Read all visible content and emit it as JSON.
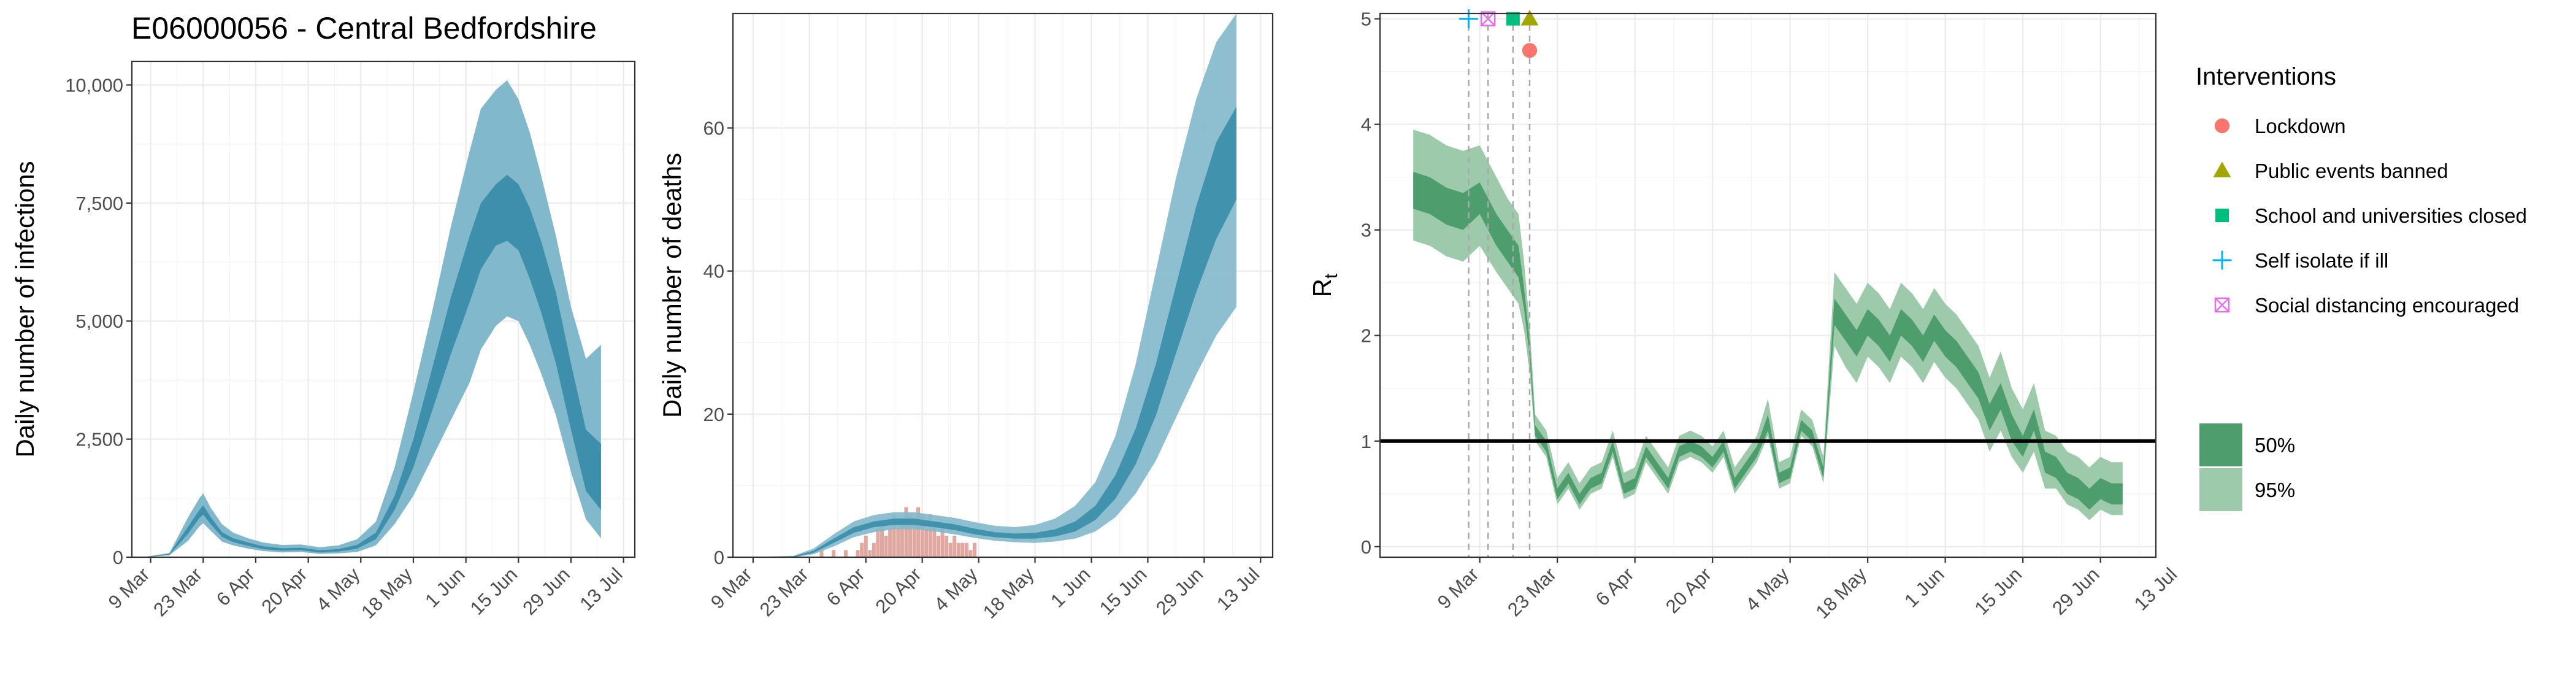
{
  "title": "E06000056 - Central Bedfordshire",
  "colors": {
    "blue_light": "#82b8cb",
    "blue_dark": "#3d8fab",
    "green_light": "#9ccaaa",
    "green_dark": "#4e9d6d",
    "death_bar": "#e0a8a0",
    "lockdown": "#f8766d",
    "public_events": "#a3a500",
    "school": "#00bf7d",
    "self_isolate": "#00b0f6",
    "social_distancing": "#e76bf3"
  },
  "chart_data": [
    {
      "name": "infections",
      "type": "area",
      "xlabel": "",
      "ylabel": "Daily number of infections",
      "ylim": [
        0,
        10500
      ],
      "yticks": [
        0,
        2500,
        5000,
        7500,
        10000
      ],
      "ytick_labels": [
        "0",
        "2,500",
        "5,000",
        "7,500",
        "10,000"
      ],
      "xlim": [
        -5,
        129
      ],
      "xticks": [
        0,
        14,
        28,
        42,
        56,
        70,
        84,
        98,
        112,
        126
      ],
      "xtick_labels": [
        "9 Mar",
        "23 Mar",
        "6 Apr",
        "20 Apr",
        "4 May",
        "18 May",
        "1 Jun",
        "15 Jun",
        "29 Jun",
        "13 Jul"
      ],
      "x": [
        -2,
        5,
        10,
        13,
        14,
        16,
        19,
        22,
        26,
        30,
        35,
        40,
        45,
        50,
        55,
        60,
        65,
        70,
        75,
        80,
        85,
        88,
        92,
        95,
        98,
        101,
        104,
        108,
        112,
        116,
        120
      ],
      "series": [
        {
          "name": "95% lower",
          "values": [
            0,
            40,
            350,
            650,
            720,
            560,
            330,
            250,
            180,
            130,
            100,
            110,
            70,
            80,
            110,
            250,
            700,
            1300,
            2100,
            2900,
            3700,
            4400,
            4900,
            5100,
            5000,
            4500,
            3900,
            3000,
            1800,
            800,
            400
          ]
        },
        {
          "name": "50% lower",
          "values": [
            0,
            50,
            500,
            830,
            900,
            700,
            430,
            320,
            240,
            170,
            140,
            150,
            100,
            120,
            180,
            380,
            1000,
            1900,
            3100,
            4300,
            5400,
            6100,
            6600,
            6700,
            6500,
            5900,
            5200,
            4100,
            2700,
            1400,
            1000
          ]
        },
        {
          "name": "50% upper",
          "values": [
            0,
            70,
            650,
            1000,
            1100,
            850,
            530,
            400,
            310,
            230,
            190,
            200,
            150,
            170,
            260,
            520,
            1300,
            2500,
            4000,
            5500,
            6800,
            7500,
            7900,
            8100,
            7900,
            7400,
            6700,
            5600,
            4100,
            2700,
            2400
          ]
        },
        {
          "name": "95% upper",
          "values": [
            0,
            90,
            850,
            1250,
            1350,
            1050,
            700,
            520,
            400,
            310,
            260,
            270,
            210,
            250,
            380,
            750,
            1900,
            3500,
            5200,
            7000,
            8600,
            9500,
            9900,
            10100,
            9700,
            9000,
            8100,
            6800,
            5300,
            4200,
            4500
          ]
        }
      ]
    },
    {
      "name": "deaths",
      "type": "area",
      "xlabel": "",
      "ylabel": "Daily number of deaths",
      "ylim": [
        0,
        76
      ],
      "yticks": [
        0,
        20,
        40,
        60
      ],
      "ytick_labels": [
        "0",
        "20",
        "40",
        "60"
      ],
      "xlim": [
        -5,
        129
      ],
      "xticks": [
        0,
        14,
        28,
        42,
        56,
        70,
        84,
        98,
        112,
        126
      ],
      "xtick_labels": [
        "9 Mar",
        "23 Mar",
        "6 Apr",
        "20 Apr",
        "4 May",
        "18 May",
        "1 Jun",
        "15 Jun",
        "29 Jun",
        "13 Jul"
      ],
      "x": [
        -2,
        10,
        15,
        20,
        25,
        30,
        35,
        40,
        45,
        50,
        55,
        60,
        65,
        70,
        75,
        80,
        85,
        90,
        95,
        100,
        105,
        110,
        115,
        120
      ],
      "series": [
        {
          "name": "95% lower",
          "values": [
            0,
            0,
            0.4,
            1.5,
            2.8,
            3.5,
            3.9,
            3.9,
            3.6,
            3.2,
            2.7,
            2.3,
            2.1,
            2.0,
            2.2,
            2.6,
            3.6,
            5.6,
            8.9,
            13.5,
            19.5,
            25.5,
            31.0,
            35.0
          ]
        },
        {
          "name": "50% lower",
          "values": [
            0,
            0,
            0.6,
            2.0,
            3.4,
            4.2,
            4.5,
            4.5,
            4.2,
            3.8,
            3.2,
            2.8,
            2.6,
            2.6,
            2.9,
            3.6,
            5.2,
            8.2,
            13.0,
            19.8,
            28.5,
            37.0,
            44.5,
            50.0
          ]
        },
        {
          "name": "50% upper",
          "values": [
            0,
            0.1,
            0.9,
            2.6,
            4.2,
            5.0,
            5.4,
            5.4,
            5.0,
            4.6,
            4.0,
            3.5,
            3.3,
            3.4,
            3.9,
            5.0,
            7.2,
            11.5,
            18.0,
            27.0,
            38.0,
            49.0,
            58.0,
            63.0
          ]
        },
        {
          "name": "95% upper",
          "values": [
            0,
            0.2,
            1.2,
            3.2,
            5.0,
            5.9,
            6.3,
            6.3,
            5.9,
            5.5,
            4.9,
            4.4,
            4.2,
            4.5,
            5.4,
            7.2,
            10.5,
            17.0,
            27.0,
            40.0,
            53.0,
            64.0,
            72.0,
            76.0
          ]
        }
      ],
      "bars": {
        "x": [
          17,
          20,
          23,
          26,
          27,
          28,
          29,
          30,
          31,
          32,
          33,
          34,
          35,
          36,
          37,
          38,
          39,
          40,
          41,
          42,
          43,
          44,
          45,
          46,
          47,
          48,
          49,
          50,
          51,
          52,
          53,
          54,
          55
        ],
        "values": [
          1,
          1,
          1,
          1,
          2,
          3,
          1,
          2,
          4,
          5,
          3,
          4,
          6,
          4,
          5,
          7,
          6,
          5,
          7,
          6,
          4,
          6,
          5,
          3,
          4,
          3,
          2,
          3,
          2,
          2,
          2,
          1,
          2
        ]
      }
    },
    {
      "name": "rt",
      "type": "area",
      "xlabel": "",
      "ylabel": "R",
      "ylabel_sub": "t",
      "ylim": [
        -0.1,
        5.05
      ],
      "yticks": [
        0,
        1,
        2,
        3,
        4,
        5
      ],
      "ytick_labels": [
        "0",
        "1",
        "2",
        "3",
        "4",
        "5"
      ],
      "xlim": [
        -18,
        122
      ],
      "xticks": [
        0,
        14,
        28,
        42,
        56,
        70,
        84,
        98,
        112,
        126
      ],
      "xtick_labels": [
        "9 Mar",
        "23 Mar",
        "6 Apr",
        "20 Apr",
        "4 May",
        "18 May",
        "1 Jun",
        "15 Jun",
        "29 Jun",
        "13 Jul"
      ],
      "reference_line": 1,
      "intervention_x": [
        -2,
        1.5,
        6,
        9
      ],
      "x": [
        -12,
        -9,
        -6,
        -3,
        0,
        3,
        5,
        7,
        8,
        9,
        10,
        12,
        14,
        16,
        18,
        20,
        22,
        24,
        26,
        28,
        30,
        32,
        34,
        36,
        38,
        40,
        42,
        44,
        46,
        48,
        50,
        52,
        54,
        56,
        58,
        60,
        62,
        64,
        66,
        68,
        70,
        72,
        74,
        76,
        78,
        80,
        82,
        84,
        86,
        88,
        90,
        92,
        94,
        96,
        98,
        100,
        102,
        104,
        106,
        108,
        110,
        112,
        114,
        116
      ],
      "series": [
        {
          "name": "95% lower",
          "values": [
            2.9,
            2.85,
            2.75,
            2.7,
            2.85,
            2.6,
            2.45,
            2.3,
            2.05,
            1.65,
            1.0,
            0.85,
            0.4,
            0.55,
            0.35,
            0.5,
            0.55,
            0.85,
            0.45,
            0.5,
            0.8,
            0.65,
            0.5,
            0.8,
            0.85,
            0.8,
            0.7,
            0.85,
            0.5,
            0.65,
            0.8,
            1.05,
            0.55,
            0.6,
            1.05,
            0.95,
            0.6,
            1.9,
            1.7,
            1.55,
            1.8,
            1.7,
            1.55,
            1.8,
            1.7,
            1.55,
            1.75,
            1.6,
            1.5,
            1.35,
            1.2,
            0.9,
            1.1,
            0.85,
            0.7,
            0.9,
            0.55,
            0.55,
            0.4,
            0.35,
            0.25,
            0.35,
            0.3,
            0.3
          ]
        },
        {
          "name": "50% lower",
          "values": [
            3.2,
            3.15,
            3.05,
            3.0,
            3.15,
            2.85,
            2.7,
            2.55,
            2.25,
            1.8,
            1.05,
            0.9,
            0.45,
            0.6,
            0.4,
            0.55,
            0.6,
            0.9,
            0.5,
            0.55,
            0.85,
            0.7,
            0.55,
            0.85,
            0.9,
            0.85,
            0.75,
            0.9,
            0.55,
            0.7,
            0.85,
            1.1,
            0.6,
            0.65,
            1.1,
            1.0,
            0.65,
            2.1,
            1.95,
            1.8,
            2.0,
            1.9,
            1.75,
            2.0,
            1.9,
            1.75,
            1.95,
            1.8,
            1.7,
            1.55,
            1.4,
            1.1,
            1.3,
            1.0,
            0.85,
            1.1,
            0.7,
            0.65,
            0.5,
            0.45,
            0.35,
            0.45,
            0.4,
            0.4
          ]
        },
        {
          "name": "50% upper",
          "values": [
            3.55,
            3.5,
            3.4,
            3.35,
            3.45,
            3.15,
            3.0,
            2.85,
            2.45,
            1.95,
            1.15,
            1.0,
            0.55,
            0.7,
            0.5,
            0.65,
            0.7,
            1.0,
            0.6,
            0.65,
            0.95,
            0.8,
            0.65,
            0.95,
            1.0,
            0.95,
            0.85,
            1.0,
            0.65,
            0.8,
            0.95,
            1.25,
            0.7,
            0.75,
            1.2,
            1.1,
            0.75,
            2.35,
            2.2,
            2.05,
            2.25,
            2.15,
            2.0,
            2.25,
            2.15,
            2.0,
            2.2,
            2.05,
            1.95,
            1.8,
            1.65,
            1.35,
            1.55,
            1.25,
            1.05,
            1.3,
            0.9,
            0.85,
            0.7,
            0.65,
            0.55,
            0.65,
            0.6,
            0.6
          ]
        },
        {
          "name": "95% upper",
          "values": [
            3.95,
            3.9,
            3.8,
            3.75,
            3.8,
            3.5,
            3.3,
            3.15,
            2.7,
            2.1,
            1.25,
            1.1,
            0.65,
            0.8,
            0.6,
            0.75,
            0.8,
            1.1,
            0.7,
            0.75,
            1.05,
            0.9,
            0.75,
            1.05,
            1.1,
            1.05,
            0.95,
            1.1,
            0.75,
            0.9,
            1.05,
            1.4,
            0.8,
            0.85,
            1.3,
            1.2,
            0.85,
            2.6,
            2.45,
            2.3,
            2.5,
            2.4,
            2.25,
            2.5,
            2.4,
            2.25,
            2.45,
            2.3,
            2.2,
            2.05,
            1.9,
            1.6,
            1.85,
            1.5,
            1.3,
            1.55,
            1.1,
            1.05,
            0.9,
            0.85,
            0.75,
            0.85,
            0.8,
            0.8
          ]
        }
      ],
      "interventions": [
        {
          "name": "Lockdown",
          "x": 9,
          "y": 4.7,
          "shape": "circle",
          "color": "#f8766d"
        },
        {
          "name": "Public events banned",
          "x": 9,
          "y": 5.0,
          "shape": "triangle",
          "color": "#a3a500"
        },
        {
          "name": "School and universities closed",
          "x": 6,
          "y": 5.0,
          "shape": "square",
          "color": "#00bf7d"
        },
        {
          "name": "Self isolate if ill",
          "x": -2,
          "y": 5.0,
          "shape": "plus",
          "color": "#00b0f6"
        },
        {
          "name": "Social distancing encouraged",
          "x": 1.5,
          "y": 5.0,
          "shape": "boxx",
          "color": "#e76bf3"
        }
      ]
    }
  ],
  "legend": {
    "interventions_title": "Interventions",
    "interventions": [
      {
        "label": "Lockdown",
        "shape": "circle",
        "color": "#f8766d"
      },
      {
        "label": "Public events banned",
        "shape": "triangle",
        "color": "#a3a500"
      },
      {
        "label": "School and universities closed",
        "shape": "square",
        "color": "#00bf7d"
      },
      {
        "label": "Self isolate if ill",
        "shape": "plus",
        "color": "#00b0f6"
      },
      {
        "label": "Social distancing encouraged",
        "shape": "boxx",
        "color": "#e76bf3"
      }
    ],
    "intervals": [
      {
        "label": "50%",
        "color": "#4e9d6d"
      },
      {
        "label": "95%",
        "color": "#9ccaaa"
      }
    ]
  }
}
